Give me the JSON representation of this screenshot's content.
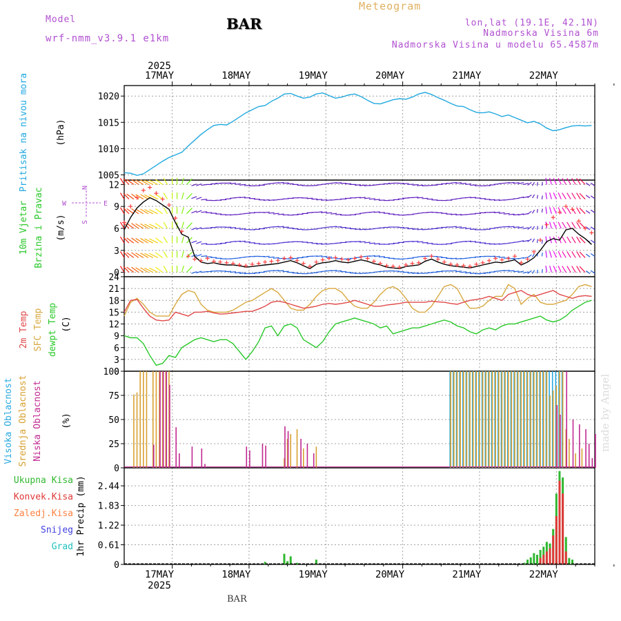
{
  "header": {
    "title": "Meteogram",
    "station": "BAR",
    "model_label": "Model",
    "model_name": "wrf-nmm_v3.9.1 e1km",
    "info": [
      "lon,lat (19.1E, 42.1N)",
      "Nadmorska Visina 6m",
      "Nadmorska Visina u modelu 65.4587m"
    ],
    "bottom_label": "BAR",
    "credit": "made by Angel"
  },
  "colors": {
    "pressure": "#20a8e0",
    "wind_speed": "#000000",
    "gust": "#ff4040",
    "t2m": "#e04848",
    "tsfc": "#d8a840",
    "dewpoint": "#28c828",
    "cloud_high": "#28a8e0",
    "cloud_mid": "#d8a030",
    "cloud_low": "#c02890",
    "rain_total": "#30b830",
    "rain_conv": "#e03838",
    "precip_frz": "#ff8040",
    "snow": "#4040e0",
    "hail": "#20c0c0",
    "grid": "#a0a0a0"
  },
  "time_axis": {
    "year": "2025",
    "days": [
      "17MAY",
      "18MAY",
      "19MAY",
      "20MAY",
      "21MAY",
      "22MAY"
    ],
    "range_hours": [
      -15,
      132
    ]
  },
  "chart_data": [
    {
      "type": "line",
      "name": "pressure",
      "ylabel": [
        "Pritisak na nivou mora",
        "(hPa)"
      ],
      "yticks": [
        "1005",
        "1010",
        "1015",
        "1020"
      ],
      "ylim": [
        1004,
        1022
      ],
      "x": [
        -15,
        -13,
        -11,
        -9,
        -7,
        -5,
        -3,
        -1,
        1,
        3,
        5,
        7,
        9,
        11,
        13,
        15,
        17,
        19,
        21,
        23,
        25,
        27,
        29,
        31,
        33,
        35,
        37,
        39,
        41,
        43,
        45,
        47,
        49,
        51,
        53,
        55,
        57,
        59,
        61,
        63,
        65,
        67,
        69,
        71,
        73,
        75,
        77,
        79,
        81,
        83,
        85,
        87,
        89,
        91,
        93,
        95,
        97,
        99,
        101,
        103,
        105,
        107,
        109,
        111,
        113,
        115,
        117,
        119,
        121,
        123,
        125,
        127,
        129,
        131
      ],
      "y": [
        1005.4,
        1005.3,
        1004.9,
        1005.2,
        1006.0,
        1006.8,
        1007.6,
        1008.3,
        1008.8,
        1009.3,
        1010.5,
        1011.6,
        1012.7,
        1013.6,
        1014.4,
        1014.6,
        1014.5,
        1015.2,
        1016.0,
        1016.8,
        1017.4,
        1018.0,
        1018.2,
        1019.0,
        1019.6,
        1020.4,
        1020.5,
        1020.0,
        1019.6,
        1019.8,
        1020.4,
        1020.6,
        1020.1,
        1019.6,
        1019.8,
        1020.2,
        1020.4,
        1019.9,
        1019.2,
        1018.6,
        1018.5,
        1018.9,
        1019.3,
        1019.5,
        1019.4,
        1019.8,
        1020.4,
        1020.7,
        1020.3,
        1019.7,
        1019.2,
        1018.6,
        1018.1,
        1018.0,
        1017.4,
        1016.9,
        1016.8,
        1017.0,
        1016.6,
        1016.1,
        1016.4,
        1015.9,
        1015.4,
        1014.9,
        1015.2,
        1014.7,
        1013.9,
        1013.4,
        1013.6,
        1014.0,
        1014.3,
        1014.4,
        1014.3,
        1014.4
      ]
    },
    {
      "type": "line",
      "name": "wind",
      "ylabel": [
        "10m Vjetar",
        "Brzina i Pravac",
        "(m/s)"
      ],
      "compass": [
        "N",
        "W",
        "E",
        "S"
      ],
      "yticks": [
        "0",
        "3",
        "6",
        "9",
        "12"
      ],
      "ylim": [
        -0.6,
        12.6
      ],
      "barb_levels": [
        0,
        2,
        4,
        6,
        8,
        10,
        12
      ],
      "x": [
        -15,
        -13,
        -11,
        -9,
        -7,
        -5,
        -3,
        -1,
        1,
        3,
        5,
        7,
        9,
        11,
        13,
        15,
        17,
        19,
        21,
        23,
        25,
        27,
        29,
        31,
        33,
        35,
        37,
        39,
        41,
        43,
        45,
        47,
        49,
        51,
        53,
        55,
        57,
        59,
        61,
        63,
        65,
        67,
        69,
        71,
        73,
        75,
        77,
        79,
        81,
        83,
        85,
        87,
        89,
        91,
        93,
        95,
        97,
        99,
        101,
        103,
        105,
        107,
        109,
        111,
        113,
        115,
        117,
        119,
        121,
        123,
        125,
        127,
        129,
        131
      ],
      "speed": [
        5.8,
        7.5,
        8.8,
        9.6,
        10.2,
        9.8,
        9.2,
        8.6,
        6.8,
        5.2,
        4.8,
        2.2,
        1.4,
        1.2,
        1.3,
        1.1,
        1.0,
        1.0,
        0.9,
        0.7,
        0.8,
        0.9,
        1.0,
        1.1,
        1.2,
        1.4,
        1.6,
        1.3,
        0.9,
        0.5,
        1.1,
        1.3,
        1.4,
        1.6,
        1.4,
        1.3,
        1.5,
        1.7,
        1.5,
        1.2,
        1.0,
        0.7,
        0.6,
        0.5,
        0.8,
        0.9,
        1.0,
        1.5,
        1.8,
        1.4,
        1.1,
        0.9,
        0.8,
        0.7,
        0.6,
        0.8,
        1.0,
        1.2,
        1.4,
        1.3,
        1.5,
        1.7,
        1.0,
        1.4,
        2.0,
        3.0,
        4.2,
        4.6,
        4.4,
        5.8,
        6.0,
        5.2,
        4.6,
        3.8
      ],
      "gust": [
        6.8,
        9.0,
        10.2,
        11.2,
        11.6,
        10.8,
        10.0,
        9.2,
        7.4,
        5.6,
        2.2,
        1.8,
        1.6,
        1.9,
        1.5,
        1.4,
        1.3,
        1.2,
        1.0,
        0.9,
        1.1,
        1.2,
        1.4,
        1.5,
        1.6,
        1.9,
        2.0,
        1.6,
        1.2,
        0.8,
        1.4,
        1.7,
        1.9,
        2.0,
        1.8,
        1.7,
        1.9,
        2.1,
        1.9,
        1.5,
        1.2,
        0.9,
        0.8,
        0.7,
        1.0,
        1.2,
        1.3,
        1.9,
        2.2,
        1.8,
        1.4,
        1.1,
        1.0,
        0.9,
        0.8,
        1.1,
        1.3,
        1.6,
        1.9,
        1.7,
        1.9,
        2.2,
        1.3,
        1.8,
        2.8,
        4.4,
        6.5,
        7.5,
        8.2,
        9.0,
        8.6,
        7.0,
        6.0,
        5.4
      ],
      "direction": [
        200,
        210,
        220,
        225,
        225,
        230,
        220,
        200,
        180,
        170,
        150,
        120,
        100,
        90,
        90,
        90,
        95,
        100,
        100,
        95,
        90,
        90,
        100,
        100,
        100,
        95,
        90,
        90,
        90,
        95,
        100,
        100,
        100,
        95,
        90,
        90,
        95,
        100,
        100,
        100,
        95,
        90,
        90,
        90,
        95,
        100,
        100,
        95,
        90,
        90,
        90,
        100,
        100,
        100,
        95,
        90,
        90,
        95,
        100,
        100,
        100,
        100,
        110,
        140,
        160,
        175,
        185,
        190,
        195,
        200,
        200,
        200,
        210,
        220
      ]
    },
    {
      "type": "line",
      "name": "temperature",
      "ylabel": [
        "2m Temp",
        "SFC Temp",
        "dewpt Temp",
        "(C)"
      ],
      "yticks": [
        "0",
        "3",
        "6",
        "9",
        "12",
        "15",
        "18",
        "21",
        "24"
      ],
      "ylim": [
        0,
        24
      ],
      "x": [
        -15,
        -13,
        -11,
        -9,
        -7,
        -5,
        -3,
        -1,
        1,
        3,
        5,
        7,
        9,
        11,
        13,
        15,
        17,
        19,
        21,
        23,
        25,
        27,
        29,
        31,
        33,
        35,
        37,
        39,
        41,
        43,
        45,
        47,
        49,
        51,
        53,
        55,
        57,
        59,
        61,
        63,
        65,
        67,
        69,
        71,
        73,
        75,
        77,
        79,
        81,
        83,
        85,
        87,
        89,
        91,
        93,
        95,
        97,
        99,
        101,
        103,
        105,
        107,
        109,
        111,
        113,
        115,
        117,
        119,
        121,
        123,
        125,
        127,
        129,
        131
      ],
      "series": [
        {
          "name": "2m Temp",
          "values": [
            15.0,
            18.0,
            18.2,
            16.0,
            14.0,
            13.0,
            12.8,
            13.0,
            15.0,
            14.5,
            14.0,
            15.0,
            15.0,
            15.2,
            14.8,
            14.5,
            14.6,
            14.8,
            15.0,
            15.2,
            15.2,
            15.8,
            16.5,
            17.5,
            17.8,
            17.5,
            17.0,
            16.5,
            16.0,
            16.2,
            16.5,
            17.0,
            17.2,
            17.0,
            17.2,
            17.5,
            18.0,
            17.5,
            17.0,
            16.5,
            16.5,
            16.8,
            17.0,
            17.2,
            17.5,
            17.5,
            17.5,
            17.5,
            17.8,
            17.6,
            17.5,
            17.2,
            17.0,
            17.5,
            18.0,
            18.2,
            18.5,
            19.0,
            18.5,
            18.0,
            19.5,
            20.0,
            20.5,
            19.5,
            19.0,
            19.5,
            20.0,
            20.5,
            19.5,
            19.0,
            18.5,
            19.0,
            19.2,
            19.0
          ]
        },
        {
          "name": "SFC Temp",
          "values": [
            14.0,
            17.5,
            18.5,
            17.0,
            15.0,
            14.0,
            14.0,
            14.0,
            17.0,
            19.5,
            20.5,
            20.0,
            17.0,
            15.5,
            15.0,
            15.0,
            15.0,
            15.5,
            16.5,
            17.5,
            18.0,
            19.0,
            20.0,
            21.0,
            20.0,
            18.0,
            16.0,
            15.5,
            15.5,
            17.0,
            19.0,
            20.5,
            21.0,
            21.0,
            20.0,
            18.0,
            16.5,
            16.0,
            16.0,
            17.5,
            19.5,
            21.0,
            21.5,
            20.5,
            18.5,
            16.0,
            15.0,
            15.0,
            16.5,
            19.0,
            21.5,
            22.0,
            21.0,
            18.0,
            16.0,
            16.0,
            16.5,
            18.0,
            19.0,
            19.0,
            22.0,
            21.0,
            17.0,
            18.5,
            19.5,
            17.5,
            17.0,
            17.0,
            17.5,
            18.0,
            19.5,
            21.5,
            22.0,
            21.5
          ]
        },
        {
          "name": "dewpt Temp",
          "values": [
            9.0,
            8.5,
            8.5,
            7.0,
            4.0,
            1.5,
            2.0,
            4.0,
            3.5,
            6.0,
            7.0,
            8.0,
            8.5,
            8.0,
            7.5,
            8.0,
            8.0,
            7.0,
            5.0,
            3.0,
            5.0,
            7.5,
            11.0,
            11.5,
            9.0,
            11.5,
            12.0,
            11.0,
            8.0,
            7.0,
            6.0,
            7.5,
            10.0,
            12.0,
            12.5,
            13.0,
            13.5,
            13.0,
            12.5,
            12.0,
            11.0,
            11.5,
            9.5,
            10.0,
            10.5,
            11.0,
            11.0,
            11.5,
            12.0,
            12.5,
            13.0,
            12.5,
            11.5,
            11.0,
            10.0,
            9.5,
            10.5,
            11.0,
            10.5,
            11.5,
            12.0,
            12.0,
            12.5,
            13.0,
            13.5,
            14.0,
            13.0,
            12.5,
            13.0,
            14.0,
            15.5,
            16.5,
            17.5,
            18.0
          ]
        }
      ]
    },
    {
      "type": "bar",
      "name": "clouds",
      "ylabel": [
        "Visoka Oblacnost",
        "Srednja Oblacnost",
        "Niska Oblacnost",
        "(%)"
      ],
      "yticks": [
        "0",
        "25",
        "50",
        "75",
        "100"
      ],
      "ylim": [
        0,
        100
      ],
      "series": [
        {
          "name": "Visoka Oblacnost",
          "x": [
            87,
            88,
            89,
            90,
            91,
            92,
            93,
            94,
            95,
            96,
            97,
            98,
            99,
            100,
            101,
            102,
            103,
            104,
            105,
            106,
            107,
            108,
            109,
            110,
            111,
            112,
            113,
            114,
            115,
            116,
            117,
            118,
            119,
            120,
            121,
            122
          ],
          "values": [
            100,
            100,
            100,
            100,
            100,
            100,
            100,
            100,
            100,
            100,
            100,
            100,
            100,
            100,
            100,
            100,
            100,
            100,
            100,
            100,
            100,
            100,
            100,
            100,
            100,
            100,
            100,
            100,
            100,
            100,
            100,
            100,
            100,
            100,
            100,
            100
          ]
        },
        {
          "name": "Srednja Oblacnost",
          "x": [
            -12,
            -11,
            -10,
            -9,
            -8,
            -6,
            -5,
            -4,
            -3,
            -2,
            -1,
            35,
            36,
            37,
            39,
            41,
            45,
            87,
            88,
            89,
            90,
            91,
            92,
            93,
            94,
            95,
            96,
            97,
            98,
            99,
            100,
            101,
            102,
            103,
            104,
            105,
            106,
            107,
            108,
            109,
            110,
            111,
            112,
            113,
            114,
            115,
            116,
            117,
            118,
            119,
            120,
            121,
            122,
            123,
            124,
            126,
            128
          ],
          "values": [
            76,
            78,
            100,
            100,
            100,
            100,
            100,
            100,
            100,
            100,
            100,
            10,
            30,
            35,
            40,
            20,
            22,
            100,
            100,
            100,
            100,
            100,
            100,
            100,
            100,
            100,
            100,
            100,
            100,
            100,
            100,
            100,
            100,
            100,
            100,
            100,
            100,
            100,
            100,
            100,
            100,
            100,
            100,
            100,
            100,
            100,
            100,
            100,
            75,
            80,
            85,
            100,
            100,
            40,
            30,
            15,
            20
          ]
        },
        {
          "name": "Niska Oblacnost",
          "x": [
            -6,
            -4,
            -3,
            -2,
            -1,
            1,
            2,
            6,
            9,
            10,
            23,
            24,
            28,
            29,
            35,
            36,
            40,
            42,
            44,
            120,
            121,
            123,
            125,
            127,
            129,
            130,
            131,
            132
          ],
          "values": [
            24,
            100,
            100,
            100,
            86,
            42,
            15,
            22,
            20,
            4,
            22,
            18,
            25,
            23,
            43,
            38,
            30,
            25,
            15,
            65,
            55,
            100,
            50,
            45,
            40,
            25,
            10,
            35
          ]
        }
      ]
    },
    {
      "type": "bar",
      "name": "precipitation",
      "ylabel": [
        "Ukupna Kisa",
        "Konvek.Kisa",
        "Zaledj.Kisa",
        "Snijeg",
        "Grad",
        "1hr Precip (mm)"
      ],
      "yticks": [
        "0",
        "0.61",
        "1.22",
        "1.83",
        "2.44"
      ],
      "ylim": [
        0,
        3.0
      ],
      "series": [
        {
          "name": "Ukupna Kisa",
          "x": [
            29,
            35,
            36,
            37,
            39,
            45,
            110,
            111,
            112,
            113,
            114,
            115,
            116,
            117,
            118,
            119,
            120,
            121,
            122,
            123,
            124,
            125
          ],
          "values": [
            0.08,
            0.33,
            0.1,
            0.25,
            0.05,
            0.15,
            0.05,
            0.15,
            0.22,
            0.35,
            0.3,
            0.45,
            0.55,
            0.7,
            0.65,
            1.1,
            2.2,
            2.9,
            2.7,
            0.85,
            0.2,
            0.15
          ]
        },
        {
          "name": "Konvek.Kisa",
          "x": [
            115,
            116,
            117,
            118,
            119,
            120,
            121,
            122,
            123
          ],
          "values": [
            0.2,
            0.3,
            0.4,
            0.5,
            0.9,
            1.5,
            2.6,
            2.2,
            0.4
          ]
        }
      ]
    }
  ]
}
